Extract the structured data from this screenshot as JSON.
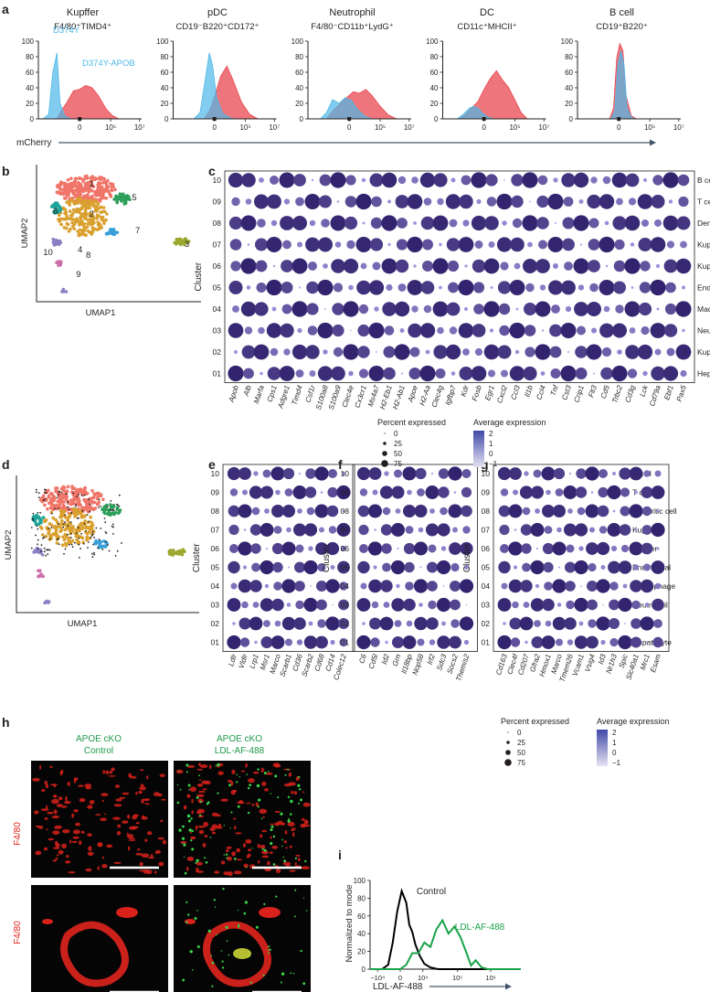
{
  "panels": {
    "a": "a",
    "b": "b",
    "c": "c",
    "d": "d",
    "e": "e",
    "f": "f",
    "g": "g",
    "h": "h",
    "i": "i"
  },
  "panel_a": {
    "xlabel": "mCherry",
    "yticks": [
      "0",
      "20",
      "40",
      "60",
      "80",
      "100"
    ],
    "xticks": [
      "0",
      "10⁵",
      "10⁷"
    ],
    "legend_d374y": "D374Y",
    "legend_pair": "D374Y-APOB",
    "colors": {
      "d374y": "#4db8e8",
      "apob": "#e8474f",
      "overlap": "#8a9cc4",
      "axis": "#44546a"
    },
    "plots": [
      {
        "title": "Kupffer",
        "subtitle": "F4/80⁺TIMD4⁺",
        "blue": [
          [
            0,
            0
          ],
          [
            0.05,
            0.3
          ],
          [
            0.1,
            6
          ],
          [
            0.14,
            60
          ],
          [
            0.18,
            85
          ],
          [
            0.21,
            20
          ],
          [
            0.26,
            3
          ],
          [
            0.32,
            0
          ],
          [
            1,
            0
          ]
        ],
        "red": [
          [
            0,
            0
          ],
          [
            0.18,
            0
          ],
          [
            0.22,
            10
          ],
          [
            0.28,
            22
          ],
          [
            0.34,
            36
          ],
          [
            0.4,
            38
          ],
          [
            0.46,
            43
          ],
          [
            0.52,
            40
          ],
          [
            0.58,
            30
          ],
          [
            0.66,
            12
          ],
          [
            0.72,
            4
          ],
          [
            0.78,
            0
          ],
          [
            1,
            0
          ]
        ]
      },
      {
        "title": "pDC",
        "subtitle": "CD19⁻B220⁺CD172⁺",
        "blue": [
          [
            0,
            0
          ],
          [
            0.2,
            0
          ],
          [
            0.26,
            8
          ],
          [
            0.31,
            50
          ],
          [
            0.35,
            85
          ],
          [
            0.38,
            70
          ],
          [
            0.42,
            28
          ],
          [
            0.48,
            7
          ],
          [
            0.56,
            1
          ],
          [
            0.6,
            0
          ],
          [
            1,
            0
          ]
        ],
        "red": [
          [
            0,
            0
          ],
          [
            0.3,
            0
          ],
          [
            0.35,
            10
          ],
          [
            0.4,
            28
          ],
          [
            0.46,
            55
          ],
          [
            0.52,
            68
          ],
          [
            0.58,
            50
          ],
          [
            0.66,
            22
          ],
          [
            0.74,
            6
          ],
          [
            0.82,
            0
          ],
          [
            1,
            0
          ]
        ]
      },
      {
        "title": "Neutrophil",
        "subtitle": "F4/80⁻CD11b⁺LydG⁺",
        "blue": [
          [
            0,
            0
          ],
          [
            0.12,
            0
          ],
          [
            0.18,
            8
          ],
          [
            0.24,
            25
          ],
          [
            0.3,
            20
          ],
          [
            0.36,
            27
          ],
          [
            0.42,
            24
          ],
          [
            0.48,
            12
          ],
          [
            0.56,
            3
          ],
          [
            0.62,
            0
          ],
          [
            1,
            0
          ]
        ],
        "red": [
          [
            0,
            0
          ],
          [
            0.18,
            0
          ],
          [
            0.24,
            10
          ],
          [
            0.3,
            18
          ],
          [
            0.38,
            28
          ],
          [
            0.44,
            35
          ],
          [
            0.5,
            33
          ],
          [
            0.56,
            38
          ],
          [
            0.62,
            30
          ],
          [
            0.7,
            16
          ],
          [
            0.78,
            5
          ],
          [
            0.86,
            0
          ],
          [
            1,
            0
          ]
        ]
      },
      {
        "title": "DC",
        "subtitle": "CD11c⁺MHCII⁺",
        "blue": [
          [
            0,
            0
          ],
          [
            0.14,
            0
          ],
          [
            0.2,
            6
          ],
          [
            0.26,
            14
          ],
          [
            0.3,
            16
          ],
          [
            0.34,
            14
          ],
          [
            0.38,
            8
          ],
          [
            0.44,
            2
          ],
          [
            0.5,
            0
          ],
          [
            1,
            0
          ]
        ],
        "red": [
          [
            0,
            0
          ],
          [
            0.16,
            0
          ],
          [
            0.22,
            6
          ],
          [
            0.28,
            14
          ],
          [
            0.34,
            22
          ],
          [
            0.4,
            38
          ],
          [
            0.46,
            52
          ],
          [
            0.52,
            62
          ],
          [
            0.58,
            50
          ],
          [
            0.64,
            40
          ],
          [
            0.7,
            24
          ],
          [
            0.76,
            8
          ],
          [
            0.82,
            0
          ],
          [
            1,
            0
          ]
        ]
      },
      {
        "title": "B cell",
        "subtitle": "CD19⁺B220⁺",
        "blue": [
          [
            0,
            0
          ],
          [
            0.32,
            0
          ],
          [
            0.36,
            10
          ],
          [
            0.39,
            70
          ],
          [
            0.42,
            88
          ],
          [
            0.45,
            70
          ],
          [
            0.48,
            14
          ],
          [
            0.52,
            2
          ],
          [
            0.56,
            0
          ],
          [
            1,
            0
          ]
        ],
        "red": [
          [
            0,
            0
          ],
          [
            0.31,
            0
          ],
          [
            0.35,
            14
          ],
          [
            0.38,
            78
          ],
          [
            0.41,
            97
          ],
          [
            0.44,
            88
          ],
          [
            0.47,
            30
          ],
          [
            0.52,
            4
          ],
          [
            0.57,
            0
          ],
          [
            1,
            0
          ]
        ]
      }
    ]
  },
  "panel_b": {
    "xlabel": "UMAP1",
    "ylabel": "UMAP2",
    "cluster_labels": [
      "1",
      "2",
      "3",
      "4",
      "5",
      "6",
      "7",
      "8",
      "9",
      "10"
    ]
  },
  "panel_d": {
    "xlabel": "UMAP1",
    "ylabel": "UMAP2"
  },
  "panel_c": {
    "ylabel": "Cluster",
    "clusters": [
      "10",
      "09",
      "08",
      "07",
      "06",
      "05",
      "04",
      "03",
      "02",
      "01"
    ],
    "celltypes": [
      "B cell",
      "T cell",
      "Dendritic cell",
      "Kupffer",
      "Kupffer",
      "Endothelial",
      "Macrophage",
      "Neutrophil",
      "Kupffer",
      "Hepatocyte"
    ],
    "genes": [
      "Apob",
      "Alb",
      "Marfa",
      "Cps1",
      "Adgre1",
      "Timd4",
      "Csf1r",
      "S100a8",
      "S100a9",
      "Clec4e",
      "Cx3cr1",
      "Ms4a7",
      "H2-Eb1",
      "H2-Ab1",
      "Apoe",
      "H2-Aa",
      "Clec4g",
      "Igfbp7",
      "Kdr",
      "Fosb",
      "Egr1",
      "Cxcl2",
      "Ccl3",
      "Il1b",
      "Ccl4",
      "Tnf",
      "Cst3",
      "Crip1",
      "Flt3",
      "Cd5",
      "Trbc2",
      "Cd3g",
      "Lck",
      "Cd79a",
      "Ebf1",
      "Pax5"
    ],
    "legend": {
      "pct_title": "Percent expressed",
      "pct_values": [
        "0",
        "25",
        "50",
        "75"
      ],
      "avg_title": "Average expression",
      "avg_ticks": [
        "2",
        "1",
        "0",
        "−1"
      ]
    }
  },
  "panel_e": {
    "ylabel": "Cluster",
    "clusters": [
      "10",
      "09",
      "08",
      "07",
      "06",
      "05",
      "04",
      "03",
      "02",
      "01"
    ],
    "genes": [
      "Ldlr",
      "Vldlr",
      "Lrp1",
      "Msr1",
      "Marco",
      "Scarb1",
      "Cd36",
      "Scarb2",
      "Cd68",
      "Cd14",
      "Colec12"
    ]
  },
  "panel_f": {
    "ylabel": "Cluster",
    "clusters": [
      "10",
      "09",
      "08",
      "07",
      "06",
      "05",
      "04",
      "03",
      "02",
      "01"
    ],
    "genes": [
      "C6",
      "Cd5l",
      "Id2",
      "Grn",
      "Il18bp",
      "Nop58",
      "Irf2",
      "Sdc3",
      "Socs2",
      "Themis2"
    ]
  },
  "panel_g": {
    "ylabel": "Cluster",
    "clusters": [
      "10",
      "09",
      "08",
      "07",
      "06",
      "05",
      "04",
      "03",
      "02",
      "01"
    ],
    "celltypes": [
      "B cell",
      "T cell",
      "Dendritic cell",
      "Kupffer",
      "Kupffer",
      "Endothelial",
      "Macrophage",
      "Neutrophil",
      "Kupffer",
      "Hepatocyte"
    ],
    "genes": [
      "Cd163",
      "Clec4f",
      "Cd207",
      "Gfra2",
      "Hmox1",
      "Marco",
      "Tmem26",
      "Vcam1",
      "Vsig4",
      "Id3",
      "Nr1h3",
      "Spic",
      "Slc40a1",
      "Mrc1",
      "Esam"
    ],
    "legend": {
      "pct_title": "Percent expressed",
      "pct_values": [
        "0",
        "25",
        "50",
        "75"
      ],
      "avg_title": "Average expression",
      "avg_ticks": [
        "2",
        "1",
        "0",
        "−1"
      ]
    }
  },
  "panel_h": {
    "col1_line1": "APOE cKO",
    "col1_line2": "Control",
    "col2_line1": "APOE cKO",
    "col2_line2": "LDL-AF-488",
    "row_label": "F4/80"
  },
  "chart_data": [
    {
      "type": "histogram",
      "panel": "i",
      "xlabel": "LDL-AF-488",
      "ylabel": "Normalized to mode",
      "yticks": [
        "0",
        "20",
        "40",
        "60",
        "80",
        "100"
      ],
      "xticks": [
        "−10⁴",
        "0",
        "10⁴",
        "10⁵",
        "10⁶"
      ],
      "ylim": [
        0,
        100
      ],
      "series": [
        {
          "name": "Control",
          "color": "#000000",
          "x": [
            0,
            0.08,
            0.12,
            0.15,
            0.18,
            0.21,
            0.24,
            0.26,
            0.28,
            0.3,
            0.33,
            0.36,
            0.4,
            0.45,
            1
          ],
          "values": [
            0,
            0,
            5,
            30,
            65,
            88,
            75,
            50,
            42,
            28,
            15,
            6,
            2,
            0,
            0
          ]
        },
        {
          "name": "LDL-AF-488",
          "color": "#19a34a",
          "x": [
            0,
            0.2,
            0.24,
            0.28,
            0.32,
            0.36,
            0.4,
            0.44,
            0.48,
            0.52,
            0.56,
            0.6,
            0.64,
            0.67,
            0.7,
            0.74,
            0.78,
            1
          ],
          "values": [
            0,
            0,
            5,
            18,
            18,
            30,
            25,
            45,
            55,
            40,
            48,
            36,
            18,
            4,
            10,
            2,
            0,
            0
          ]
        }
      ]
    }
  ]
}
